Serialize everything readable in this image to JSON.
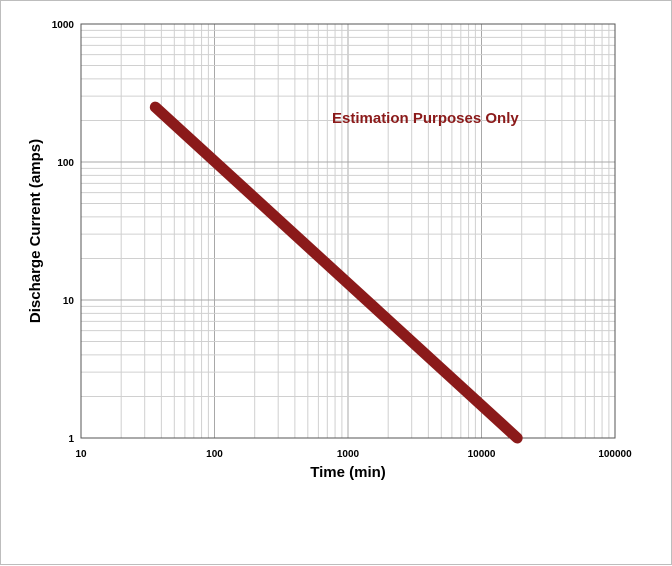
{
  "chart_data": {
    "type": "line",
    "x_scale": "log",
    "y_scale": "log",
    "xlim": [
      10,
      100000
    ],
    "ylim": [
      1,
      1000
    ],
    "xlabel": "Time (min)",
    "ylabel": "Discharge Current (amps)",
    "x_ticks": [
      "10",
      "100",
      "1000",
      "10000",
      "100000"
    ],
    "y_ticks": [
      "1",
      "10",
      "100",
      "1000"
    ],
    "grid": true,
    "annotation": "Estimation Purposes Only",
    "series": [
      {
        "color": "#8b1a1a",
        "points": [
          [
            36,
            250
          ],
          [
            18500,
            1
          ]
        ]
      }
    ]
  }
}
